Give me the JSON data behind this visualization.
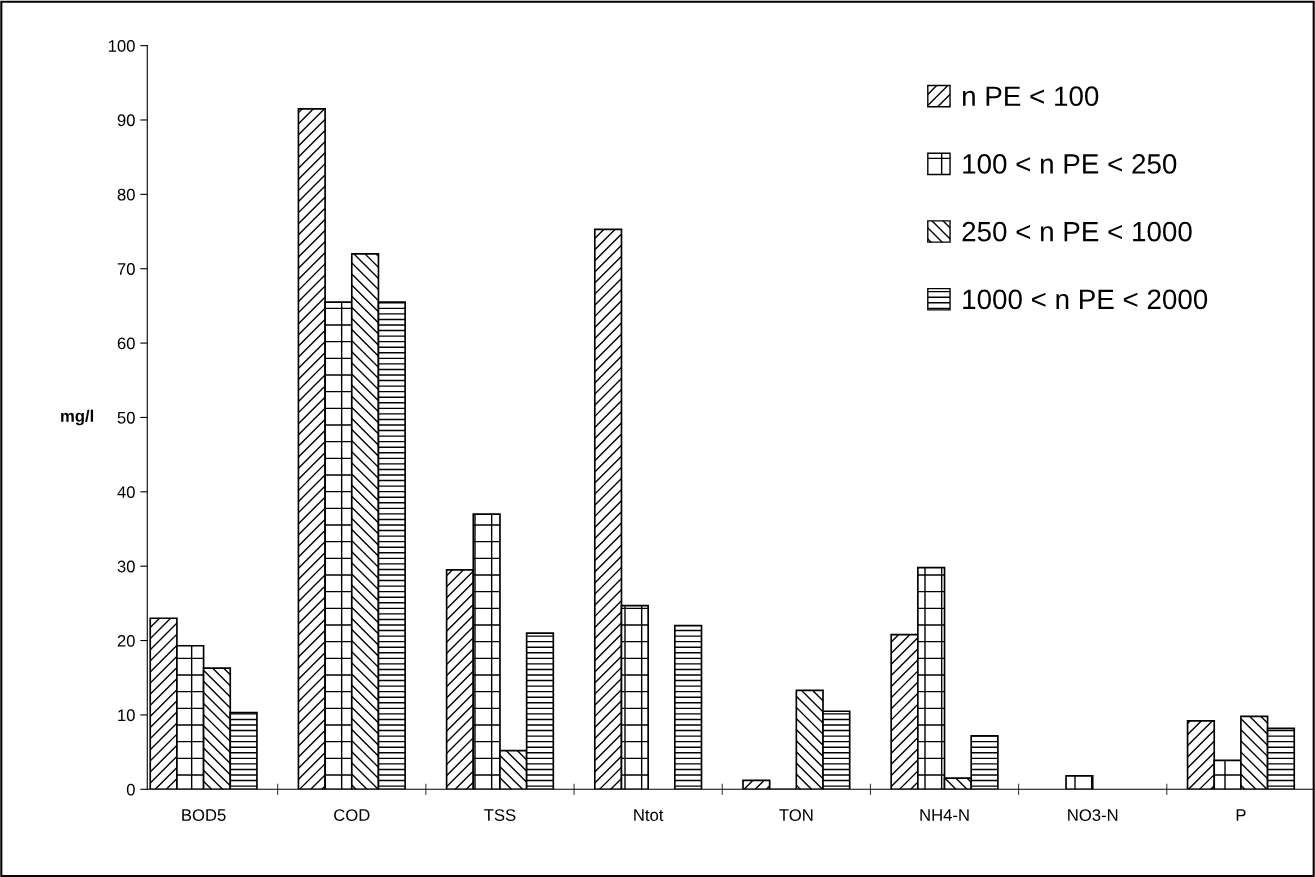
{
  "chart_data": {
    "type": "bar",
    "ylabel": "mg/l",
    "categories": [
      "BOD5",
      "COD",
      "TSS",
      "Ntot",
      "TON",
      "NH4-N",
      "NO3-N",
      "P"
    ],
    "series": [
      {
        "name": "n PE < 100",
        "color": "#000000",
        "values": [
          23,
          91.5,
          29.5,
          75.3,
          1.2,
          20.8,
          null,
          9.2
        ]
      },
      {
        "name": "100 < n PE < 250",
        "color": "#000000",
        "values": [
          19.3,
          65.5,
          37,
          24.7,
          0,
          29.8,
          1.8,
          3.9
        ]
      },
      {
        "name": "250 < n PE < 1000",
        "color": "#000000",
        "values": [
          16.3,
          72,
          5.2,
          null,
          13.3,
          1.5,
          null,
          9.8
        ]
      },
      {
        "name": "1000 < n PE < 2000",
        "color": "#000000",
        "values": [
          10.3,
          65.5,
          21,
          22,
          10.5,
          7.2,
          null,
          8.2
        ]
      }
    ],
    "ylim": [
      0,
      100
    ],
    "yticks": [
      0,
      10,
      20,
      30,
      40,
      50,
      60,
      70,
      80,
      90,
      100
    ],
    "grid": false,
    "legend": "top right"
  }
}
